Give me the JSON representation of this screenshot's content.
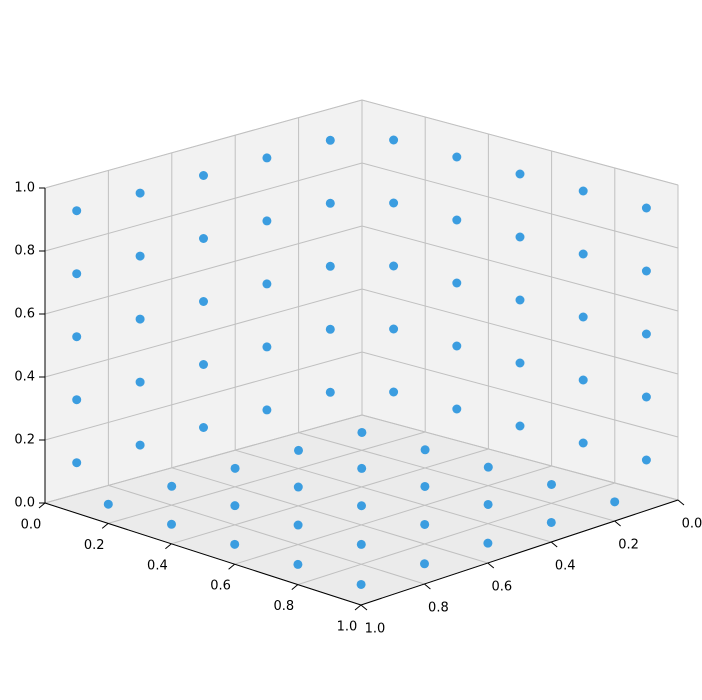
{
  "chart_data": {
    "type": "scatter3d",
    "series": [
      {
        "color": "#3b9de0",
        "x": [
          0,
          0,
          0,
          0,
          0,
          0,
          0,
          0,
          0,
          0,
          0,
          0,
          0,
          0,
          0,
          0,
          0,
          0,
          0,
          0,
          0,
          0,
          0,
          0,
          0,
          0.1,
          0.1,
          0.1,
          0.1,
          0.1,
          0.3,
          0.3,
          0.3,
          0.3,
          0.3,
          0.5,
          0.5,
          0.5,
          0.5,
          0.5,
          0.7,
          0.7,
          0.7,
          0.7,
          0.7,
          0.9,
          0.9,
          0.9,
          0.9,
          0.9,
          0.1,
          0.1,
          0.1,
          0.1,
          0.1,
          0.3,
          0.3,
          0.3,
          0.3,
          0.3,
          0.5,
          0.5,
          0.5,
          0.5,
          0.5,
          0.7,
          0.7,
          0.7,
          0.7,
          0.7,
          0.9,
          0.9,
          0.9,
          0.9,
          0.9
        ],
        "y": [
          0.1,
          0.1,
          0.1,
          0.1,
          0.1,
          0.3,
          0.3,
          0.3,
          0.3,
          0.3,
          0.5,
          0.5,
          0.5,
          0.5,
          0.5,
          0.7,
          0.7,
          0.7,
          0.7,
          0.7,
          0.9,
          0.9,
          0.9,
          0.9,
          0.9,
          0,
          0,
          0,
          0,
          0,
          0,
          0,
          0,
          0,
          0,
          0,
          0,
          0,
          0,
          0,
          0,
          0,
          0,
          0,
          0,
          0,
          0,
          0,
          0,
          0,
          0.1,
          0.3,
          0.5,
          0.7,
          0.9,
          0.1,
          0.3,
          0.5,
          0.7,
          0.9,
          0.1,
          0.3,
          0.5,
          0.7,
          0.9,
          0.1,
          0.3,
          0.5,
          0.7,
          0.9,
          0.1,
          0.3,
          0.5,
          0.7,
          0.9
        ],
        "z": [
          0.1,
          0.3,
          0.5,
          0.7,
          0.9,
          0.1,
          0.3,
          0.5,
          0.7,
          0.9,
          0.1,
          0.3,
          0.5,
          0.7,
          0.9,
          0.1,
          0.3,
          0.5,
          0.7,
          0.9,
          0.1,
          0.3,
          0.5,
          0.7,
          0.9,
          0.1,
          0.3,
          0.5,
          0.7,
          0.9,
          0.1,
          0.3,
          0.5,
          0.7,
          0.9,
          0.1,
          0.3,
          0.5,
          0.7,
          0.9,
          0.1,
          0.3,
          0.5,
          0.7,
          0.9,
          0.1,
          0.3,
          0.5,
          0.7,
          0.9,
          0,
          0,
          0,
          0,
          0,
          0,
          0,
          0,
          0,
          0,
          0,
          0,
          0,
          0,
          0,
          0,
          0,
          0,
          0,
          0,
          0,
          0,
          0,
          0,
          0
        ]
      }
    ],
    "xlim": [
      0,
      1
    ],
    "ylim": [
      0,
      1
    ],
    "zlim": [
      0,
      1
    ],
    "xticks": [
      {
        "value": 0,
        "label": "0.0"
      },
      {
        "value": 0.2,
        "label": "0.2"
      },
      {
        "value": 0.4,
        "label": "0.4"
      },
      {
        "value": 0.6,
        "label": "0.6"
      },
      {
        "value": 0.8,
        "label": "0.8"
      },
      {
        "value": 1,
        "label": "1.0"
      }
    ],
    "yticks": [
      {
        "value": 0,
        "label": "0.0"
      },
      {
        "value": 0.2,
        "label": "0.2"
      },
      {
        "value": 0.4,
        "label": "0.4"
      },
      {
        "value": 0.6,
        "label": "0.6"
      },
      {
        "value": 0.8,
        "label": "0.8"
      },
      {
        "value": 1,
        "label": "1.0"
      }
    ],
    "zticks": [
      {
        "value": 0,
        "label": "0.0"
      },
      {
        "value": 0.2,
        "label": "0.2"
      },
      {
        "value": 0.4,
        "label": "0.4"
      },
      {
        "value": 0.6,
        "label": "0.6"
      },
      {
        "value": 0.8,
        "label": "0.8"
      },
      {
        "value": 1,
        "label": "1.0"
      }
    ],
    "grid": true
  }
}
